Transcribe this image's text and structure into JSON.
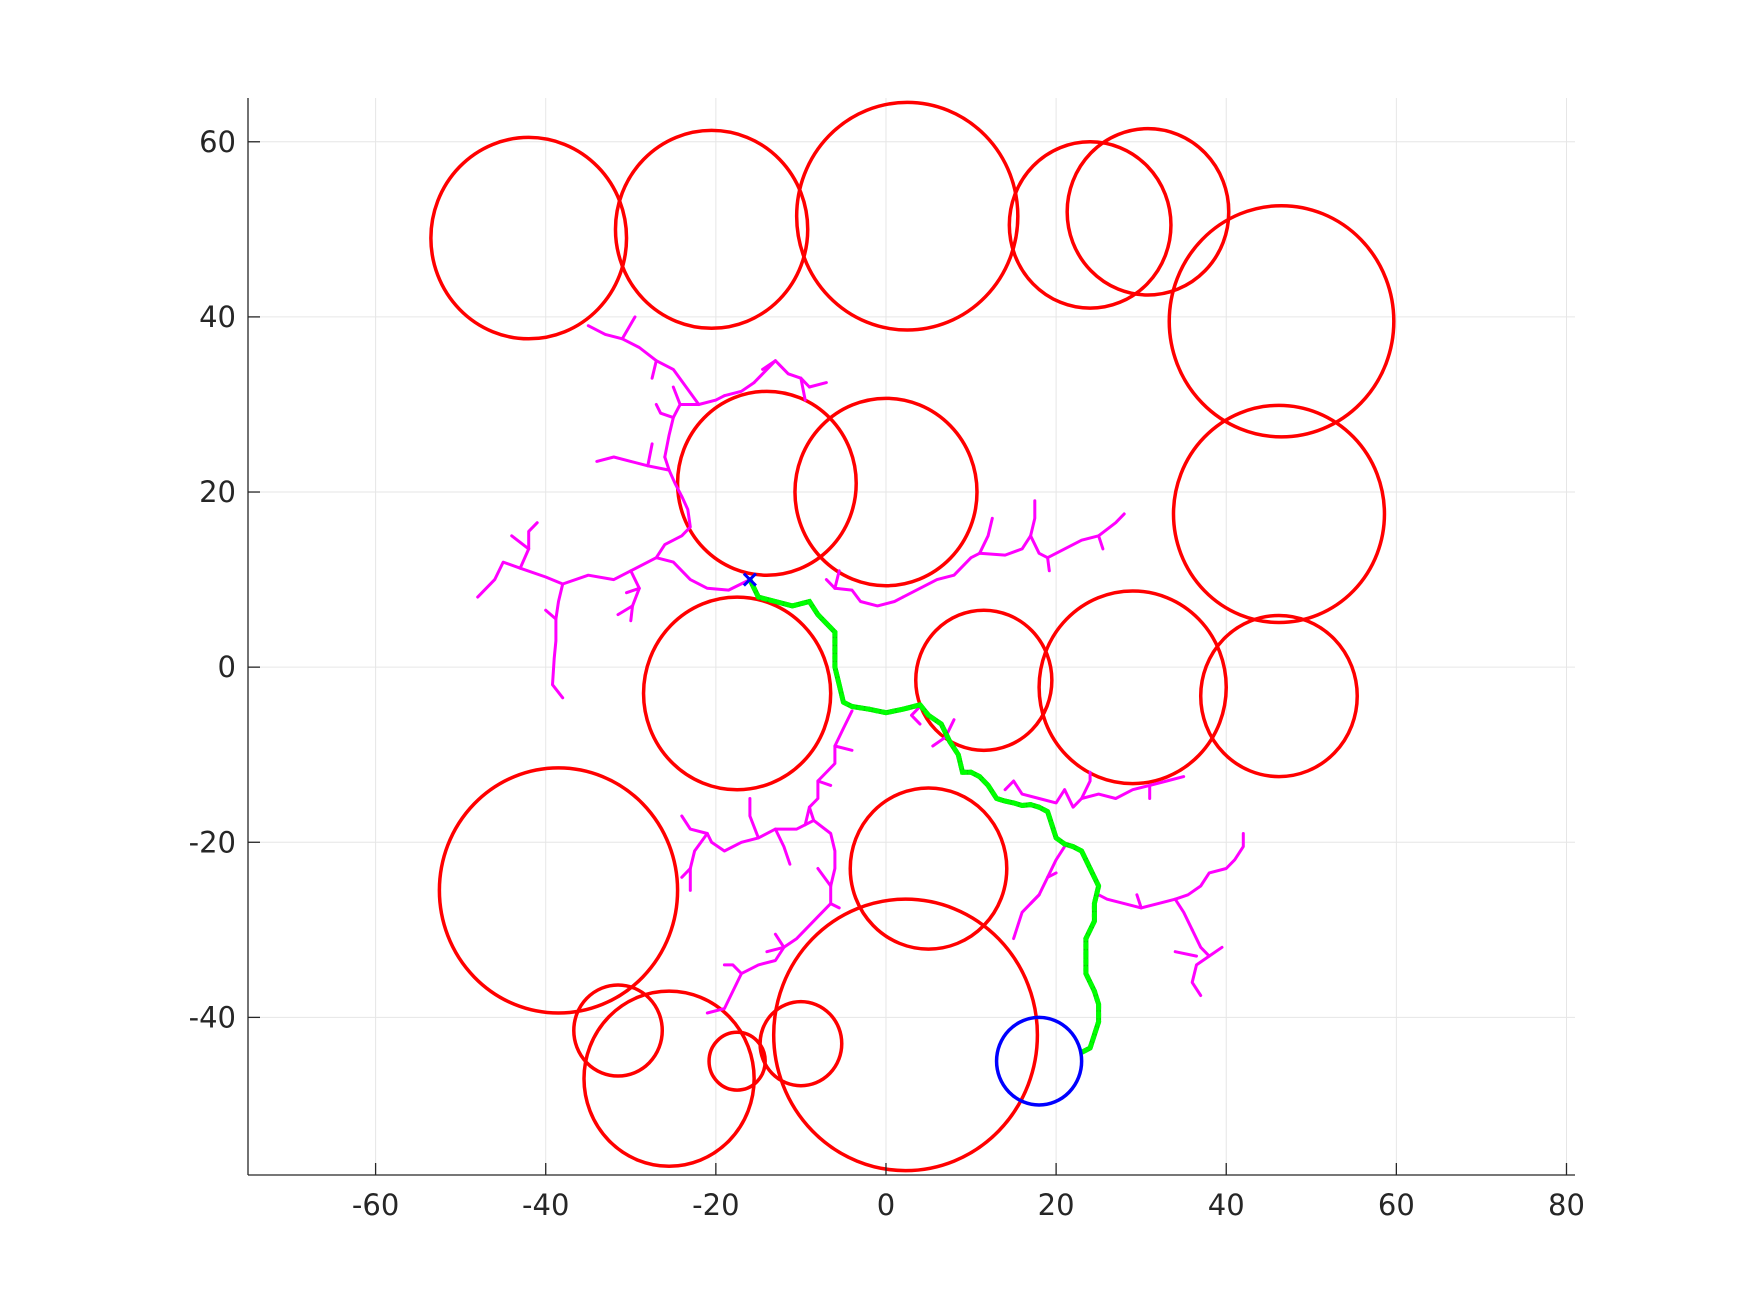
{
  "chart_data": {
    "type": "scatter",
    "title": "",
    "xlabel": "",
    "ylabel": "",
    "xlim": [
      -75,
      81
    ],
    "ylim": [
      -58,
      65
    ],
    "xticks": [
      -60,
      -40,
      -20,
      0,
      20,
      40,
      60,
      80
    ],
    "yticks": [
      -40,
      -20,
      0,
      20,
      40,
      60
    ],
    "xtick_labels": [
      "-60",
      "-40",
      "-20",
      "0",
      "20",
      "40",
      "60",
      "80"
    ],
    "ytick_labels": [
      "-40",
      "-20",
      "0",
      "20",
      "40",
      "60"
    ],
    "grid": true,
    "legend": "none",
    "colors": {
      "obstacle": "#ff0000",
      "tree": "#ff00ff",
      "path_outer": "#00cc00",
      "path_dots": "#00ff00",
      "goal": "#0000ff",
      "start": "#0000ff",
      "grid": "#e6e6e6",
      "axes": "#262626"
    },
    "start": {
      "x": -16,
      "y": 10
    },
    "goal": {
      "cx": 18,
      "cy": -45,
      "r": 5
    },
    "obstacles": [
      {
        "cx": -42,
        "cy": 49,
        "r": 11.5
      },
      {
        "cx": -20.5,
        "cy": 50,
        "r": 11.3
      },
      {
        "cx": 2.5,
        "cy": 51.5,
        "r": 13
      },
      {
        "cx": 24,
        "cy": 50.5,
        "r": 9.5
      },
      {
        "cx": 30.8,
        "cy": 52,
        "r": 9.5
      },
      {
        "cx": 46.5,
        "cy": 39.5,
        "r": 13.2
      },
      {
        "cx": 46.2,
        "cy": 17.5,
        "r": 12.4
      },
      {
        "cx": -14,
        "cy": 21,
        "r": 10.5
      },
      {
        "cx": 0,
        "cy": 20,
        "r": 10.7
      },
      {
        "cx": -17.5,
        "cy": -3,
        "r": 11
      },
      {
        "cx": 11.5,
        "cy": -1.5,
        "r": 8
      },
      {
        "cx": 29,
        "cy": -2.3,
        "r": 11
      },
      {
        "cx": 46.2,
        "cy": -3.3,
        "r": 9.2
      },
      {
        "cx": -38.5,
        "cy": -25.5,
        "r": 14
      },
      {
        "cx": 5,
        "cy": -23,
        "r": 9.2
      },
      {
        "cx": 2.3,
        "cy": -42,
        "r": 15.5
      },
      {
        "cx": -31.5,
        "cy": -41.5,
        "r": 5.2
      },
      {
        "cx": -25.5,
        "cy": -47,
        "r": 10
      },
      {
        "cx": -17.5,
        "cy": -45,
        "r": 3.3
      },
      {
        "cx": -10,
        "cy": -43,
        "r": 4.8
      }
    ],
    "tree_branches": [
      [
        [
          -16,
          10
        ],
        [
          -18.5,
          8.8
        ],
        [
          -21,
          9
        ],
        [
          -23,
          10
        ],
        [
          -25,
          12
        ],
        [
          -27,
          12.5
        ],
        [
          -30,
          11
        ],
        [
          -32,
          10
        ],
        [
          -35,
          10.5
        ],
        [
          -38,
          9.5
        ],
        [
          -40,
          10.3
        ],
        [
          -43,
          11.3
        ],
        [
          -45,
          12
        ],
        [
          -46,
          10
        ],
        [
          -48,
          8
        ]
      ],
      [
        [
          -43,
          11.3
        ],
        [
          -42,
          13.5
        ],
        [
          -42,
          15.5
        ],
        [
          -41,
          16.5
        ]
      ],
      [
        [
          -42,
          13.5
        ],
        [
          -44,
          15
        ]
      ],
      [
        [
          -38,
          9.5
        ],
        [
          -38.5,
          7.5
        ],
        [
          -38.8,
          5.5
        ],
        [
          -38.8,
          3
        ],
        [
          -39,
          1
        ],
        [
          -39.2,
          -2
        ],
        [
          -38,
          -3.5
        ]
      ],
      [
        [
          -38.8,
          5.5
        ],
        [
          -40,
          6.5
        ]
      ],
      [
        [
          -30,
          11
        ],
        [
          -29,
          9
        ],
        [
          -29.8,
          7
        ],
        [
          -30,
          5.3
        ]
      ],
      [
        [
          -29,
          9
        ],
        [
          -30.5,
          8.5
        ]
      ],
      [
        [
          -29.8,
          7
        ],
        [
          -31.5,
          6
        ]
      ],
      [
        [
          -27,
          12.5
        ],
        [
          -26,
          14
        ],
        [
          -24,
          15
        ],
        [
          -23,
          16
        ],
        [
          -23.3,
          18
        ],
        [
          -24,
          19.5
        ],
        [
          -24.8,
          21
        ],
        [
          -25.5,
          22.5
        ],
        [
          -26,
          24
        ]
      ],
      [
        [
          -25.5,
          22.5
        ],
        [
          -28,
          23
        ],
        [
          -30,
          23.5
        ],
        [
          -32,
          24
        ],
        [
          -34,
          23.5
        ]
      ],
      [
        [
          -28,
          23
        ],
        [
          -27.5,
          25.5
        ]
      ],
      [
        [
          -26,
          24
        ],
        [
          -25.5,
          26.5
        ],
        [
          -25,
          28.5
        ],
        [
          -24.2,
          30
        ],
        [
          -25,
          32
        ]
      ],
      [
        [
          -25,
          28.5
        ],
        [
          -26.5,
          29
        ],
        [
          -27,
          30
        ]
      ],
      [
        [
          -24.2,
          30
        ],
        [
          -22,
          30
        ],
        [
          -20,
          30.5
        ],
        [
          -19,
          31
        ]
      ],
      [
        [
          -22,
          30
        ],
        [
          -23.5,
          32
        ],
        [
          -25,
          34
        ],
        [
          -27,
          35
        ],
        [
          -29,
          36.5
        ],
        [
          -31,
          37.5
        ],
        [
          -33,
          38
        ],
        [
          -35,
          39
        ]
      ],
      [
        [
          -31,
          37.5
        ],
        [
          -29.5,
          40
        ]
      ],
      [
        [
          -27,
          35
        ],
        [
          -27.5,
          33
        ]
      ],
      [
        [
          -19,
          31
        ],
        [
          -17,
          31.5
        ],
        [
          -15.5,
          32.5
        ]
      ],
      [
        [
          -15.5,
          32.5
        ],
        [
          -14,
          34
        ],
        [
          -13,
          35
        ],
        [
          -11.5,
          33.5
        ],
        [
          -10,
          33
        ],
        [
          -9,
          32
        ]
      ],
      [
        [
          -13,
          35
        ],
        [
          -14.5,
          34
        ]
      ],
      [
        [
          -10,
          33
        ],
        [
          -9.5,
          30.5
        ]
      ],
      [
        [
          -9,
          32
        ],
        [
          -7,
          32.5
        ]
      ],
      [
        [
          -7,
          10
        ],
        [
          -6,
          9
        ],
        [
          -4,
          8.8
        ],
        [
          -3,
          7.5
        ],
        [
          -1,
          7
        ],
        [
          1,
          7.5
        ],
        [
          2,
          8
        ]
      ],
      [
        [
          -6,
          9
        ],
        [
          -5.5,
          11
        ]
      ],
      [
        [
          2,
          8
        ],
        [
          4,
          9
        ],
        [
          6,
          10
        ],
        [
          8,
          10.5
        ],
        [
          10,
          12.5
        ],
        [
          11,
          13
        ]
      ],
      [
        [
          11,
          13
        ],
        [
          12,
          15
        ],
        [
          12.5,
          17
        ]
      ],
      [
        [
          11,
          13
        ],
        [
          14,
          12.8
        ],
        [
          16,
          13.5
        ],
        [
          17,
          15
        ],
        [
          17.5,
          17
        ],
        [
          17.5,
          19
        ]
      ],
      [
        [
          17,
          15
        ],
        [
          18,
          13
        ],
        [
          19,
          12.5
        ],
        [
          21,
          13.5
        ],
        [
          23,
          14.5
        ],
        [
          25,
          15
        ],
        [
          27,
          16.5
        ],
        [
          28,
          17.5
        ]
      ],
      [
        [
          19,
          12.5
        ],
        [
          19.2,
          11
        ]
      ],
      [
        [
          25,
          15
        ],
        [
          25.5,
          13.5
        ]
      ],
      [
        [
          -4,
          -5
        ],
        [
          -5,
          -7
        ],
        [
          -6,
          -9
        ],
        [
          -6,
          -11
        ],
        [
          -8,
          -13
        ],
        [
          -8,
          -15
        ],
        [
          -9,
          -16
        ],
        [
          -9.5,
          -18
        ]
      ],
      [
        [
          -6,
          -9
        ],
        [
          -4,
          -9.5
        ]
      ],
      [
        [
          -8,
          -13
        ],
        [
          -6.5,
          -13.5
        ]
      ],
      [
        [
          -9,
          -16
        ],
        [
          -8.5,
          -17.5
        ],
        [
          -6.5,
          -19
        ],
        [
          -6,
          -21
        ],
        [
          -6,
          -23
        ],
        [
          -6.5,
          -25
        ],
        [
          -6.5,
          -27
        ],
        [
          -5.5,
          -27.5
        ]
      ],
      [
        [
          -6.5,
          -25
        ],
        [
          -8,
          -23
        ]
      ],
      [
        [
          -8.5,
          -17.5
        ],
        [
          -10.5,
          -18.5
        ],
        [
          -13,
          -18.5
        ],
        [
          -15,
          -19.5
        ],
        [
          -17,
          -20
        ],
        [
          -19,
          -21
        ],
        [
          -20.5,
          -20
        ],
        [
          -21,
          -19
        ],
        [
          -23,
          -18.5
        ],
        [
          -24,
          -17
        ]
      ],
      [
        [
          -13,
          -18.5
        ],
        [
          -12,
          -20.5
        ],
        [
          -11.3,
          -22.5
        ]
      ],
      [
        [
          -15,
          -19.5
        ],
        [
          -16,
          -17
        ],
        [
          -16,
          -15
        ]
      ],
      [
        [
          -21,
          -19
        ],
        [
          -22.5,
          -21
        ],
        [
          -23,
          -23
        ],
        [
          -24,
          -24
        ]
      ],
      [
        [
          -23,
          -23
        ],
        [
          -23,
          -25.5
        ]
      ],
      [
        [
          -6.5,
          -27
        ],
        [
          -8,
          -28.5
        ],
        [
          -10.5,
          -31
        ],
        [
          -12,
          -32
        ],
        [
          -14,
          -32.5
        ]
      ],
      [
        [
          -12,
          -32
        ],
        [
          -13,
          -33.5
        ],
        [
          -15,
          -34
        ],
        [
          -17,
          -35
        ],
        [
          -18,
          -37
        ],
        [
          -19,
          -39
        ],
        [
          -21,
          -39.5
        ]
      ],
      [
        [
          -12,
          -32
        ],
        [
          -13,
          -30.5
        ]
      ],
      [
        [
          -17,
          -35
        ],
        [
          -18,
          -34
        ],
        [
          -19,
          -34
        ]
      ],
      [
        [
          8,
          -6
        ],
        [
          7,
          -8
        ],
        [
          5.5,
          -9
        ]
      ],
      [
        [
          4,
          -4.5
        ],
        [
          3,
          -5.5
        ],
        [
          4,
          -6.5
        ]
      ],
      [
        [
          14,
          -14
        ],
        [
          15,
          -13
        ],
        [
          16,
          -14.5
        ],
        [
          18,
          -15
        ],
        [
          20,
          -15.5
        ],
        [
          21,
          -14
        ]
      ],
      [
        [
          21,
          -14
        ],
        [
          22,
          -16
        ],
        [
          23,
          -15
        ],
        [
          25,
          -14.5
        ],
        [
          27,
          -15
        ],
        [
          29,
          -14
        ],
        [
          31,
          -13.5
        ],
        [
          33,
          -13
        ],
        [
          35,
          -12.5
        ]
      ],
      [
        [
          23,
          -15
        ],
        [
          24,
          -13
        ],
        [
          24,
          -12
        ]
      ],
      [
        [
          31,
          -13.5
        ],
        [
          31,
          -15
        ]
      ],
      [
        [
          21,
          -20.5
        ],
        [
          20,
          -22
        ],
        [
          19,
          -24
        ],
        [
          18,
          -26
        ],
        [
          16,
          -28
        ],
        [
          15,
          -31
        ]
      ],
      [
        [
          18,
          -26
        ],
        [
          17,
          -27
        ]
      ],
      [
        [
          19,
          -24
        ],
        [
          20,
          -23.5
        ]
      ],
      [
        [
          25,
          -26
        ],
        [
          26,
          -26.5
        ],
        [
          28,
          -27
        ],
        [
          30,
          -27.5
        ],
        [
          32,
          -27
        ],
        [
          34,
          -26.5
        ]
      ],
      [
        [
          30,
          -27.5
        ],
        [
          29.5,
          -26
        ]
      ],
      [
        [
          34,
          -26.5
        ],
        [
          35.5,
          -26
        ],
        [
          37,
          -25
        ],
        [
          38,
          -23.5
        ],
        [
          40,
          -23
        ],
        [
          41,
          -22
        ],
        [
          42,
          -20.5
        ],
        [
          42,
          -19
        ]
      ],
      [
        [
          34,
          -26.5
        ],
        [
          35,
          -28
        ],
        [
          36,
          -30
        ]
      ],
      [
        [
          36,
          -30
        ],
        [
          37,
          -32
        ],
        [
          38,
          -33
        ],
        [
          36.5,
          -34
        ],
        [
          36,
          -36
        ],
        [
          37,
          -37.5
        ]
      ],
      [
        [
          36.5,
          -33
        ],
        [
          34,
          -32.5
        ]
      ],
      [
        [
          38,
          -33
        ],
        [
          39.5,
          -32
        ]
      ]
    ],
    "path": [
      [
        -16,
        10
      ],
      [
        -15,
        8
      ],
      [
        -13,
        7.5
      ],
      [
        -11,
        7
      ],
      [
        -9,
        7.5
      ],
      [
        -8,
        6
      ],
      [
        -7,
        5
      ],
      [
        -6,
        4
      ],
      [
        -6,
        2
      ],
      [
        -6,
        0
      ],
      [
        -5.5,
        -2
      ],
      [
        -5,
        -4
      ],
      [
        -4,
        -4.5
      ],
      [
        -2,
        -4.8
      ],
      [
        0,
        -5.2
      ],
      [
        2,
        -4.8
      ],
      [
        4,
        -4.3
      ],
      [
        5,
        -5.5
      ],
      [
        6.5,
        -6.5
      ],
      [
        7.5,
        -8.5
      ],
      [
        8.5,
        -10
      ],
      [
        9,
        -12
      ],
      [
        10,
        -12
      ],
      [
        11,
        -12.5
      ],
      [
        12,
        -13.5
      ],
      [
        13,
        -15
      ],
      [
        14,
        -15.3
      ],
      [
        15,
        -15.5
      ],
      [
        16,
        -15.8
      ],
      [
        17,
        -15.7
      ],
      [
        18,
        -16
      ],
      [
        19,
        -16.5
      ],
      [
        19.5,
        -18
      ],
      [
        20,
        -19.5
      ],
      [
        21,
        -20.2
      ],
      [
        22,
        -20.5
      ],
      [
        23,
        -21
      ],
      [
        24,
        -23
      ],
      [
        25,
        -25
      ],
      [
        24.5,
        -27
      ],
      [
        24.5,
        -29
      ],
      [
        23.5,
        -31
      ],
      [
        23.5,
        -33
      ],
      [
        23.5,
        -35
      ],
      [
        24.5,
        -37
      ],
      [
        25,
        -38.5
      ],
      [
        25,
        -40.5
      ],
      [
        24,
        -43.5
      ],
      [
        23,
        -44
      ]
    ]
  }
}
